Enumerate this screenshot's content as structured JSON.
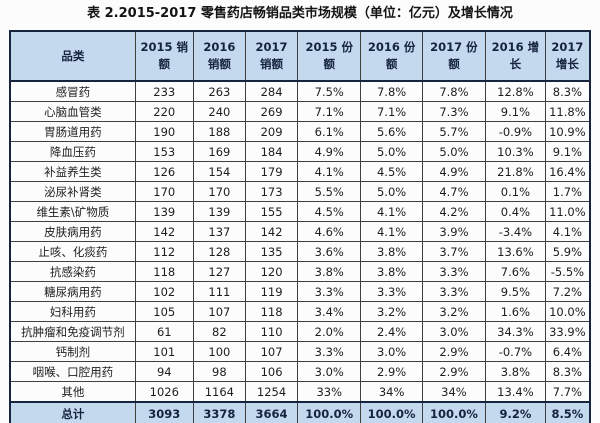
{
  "title": "表 2.2015-2017 零售药店畅销品类市场规模（单位：亿元）及增长情况",
  "colors": {
    "header_bg": "#c4d8ee",
    "outer_border": "#16243d",
    "grid_line": "#3f3f3f",
    "header_text": "#15233f",
    "body_text": "#1d1d1d",
    "page_bg": "#fcfcfc"
  },
  "table": {
    "columns": [
      "品类",
      "2015 销额",
      "2016 销额",
      "2017 销额",
      "2015 份额",
      "2016 份额",
      "2017 份额",
      "2016 增长",
      "2017 增长"
    ],
    "rows": [
      [
        "感冒药",
        "233",
        "263",
        "284",
        "7.5%",
        "7.8%",
        "7.8%",
        "12.8%",
        "8.3%"
      ],
      [
        "心脑血管类",
        "220",
        "240",
        "269",
        "7.1%",
        "7.1%",
        "7.3%",
        "9.1%",
        "11.8%"
      ],
      [
        "胃肠道用药",
        "190",
        "188",
        "209",
        "6.1%",
        "5.6%",
        "5.7%",
        "-0.9%",
        "10.9%"
      ],
      [
        "降血压药",
        "153",
        "169",
        "184",
        "4.9%",
        "5.0%",
        "5.0%",
        "10.3%",
        "9.1%"
      ],
      [
        "补益养生类",
        "126",
        "154",
        "179",
        "4.1%",
        "4.5%",
        "4.9%",
        "21.8%",
        "16.4%"
      ],
      [
        "泌尿补肾类",
        "170",
        "170",
        "173",
        "5.5%",
        "5.0%",
        "4.7%",
        "0.1%",
        "1.7%"
      ],
      [
        "维生素\\矿物质",
        "139",
        "139",
        "155",
        "4.5%",
        "4.1%",
        "4.2%",
        "0.4%",
        "11.0%"
      ],
      [
        "皮肤病用药",
        "142",
        "137",
        "142",
        "4.6%",
        "4.1%",
        "3.9%",
        "-3.4%",
        "4.1%"
      ],
      [
        "止咳、化痰药",
        "112",
        "128",
        "135",
        "3.6%",
        "3.8%",
        "3.7%",
        "13.6%",
        "5.9%"
      ],
      [
        "抗感染药",
        "118",
        "127",
        "120",
        "3.8%",
        "3.8%",
        "3.3%",
        "7.6%",
        "-5.5%"
      ],
      [
        "糖尿病用药",
        "102",
        "111",
        "119",
        "3.3%",
        "3.3%",
        "3.3%",
        "9.5%",
        "7.2%"
      ],
      [
        "妇科用药",
        "105",
        "107",
        "118",
        "3.4%",
        "3.2%",
        "3.2%",
        "1.6%",
        "10.0%"
      ],
      [
        "抗肿瘤和免疫调节剂",
        "61",
        "82",
        "110",
        "2.0%",
        "2.4%",
        "3.0%",
        "34.3%",
        "33.9%"
      ],
      [
        "钙制剂",
        "101",
        "100",
        "107",
        "3.3%",
        "3.0%",
        "2.9%",
        "-0.7%",
        "6.4%"
      ],
      [
        "咽喉、口腔用药",
        "94",
        "98",
        "106",
        "3.0%",
        "2.9%",
        "2.9%",
        "3.8%",
        "8.3%"
      ],
      [
        "其他",
        "1026",
        "1164",
        "1254",
        "33%",
        "34%",
        "34%",
        "13.4%",
        "7.7%"
      ]
    ],
    "total_row": [
      "总计",
      "3093",
      "3378",
      "3664",
      "100.0%",
      "100.0%",
      "100.0%",
      "9.2%",
      "8.5%"
    ]
  }
}
